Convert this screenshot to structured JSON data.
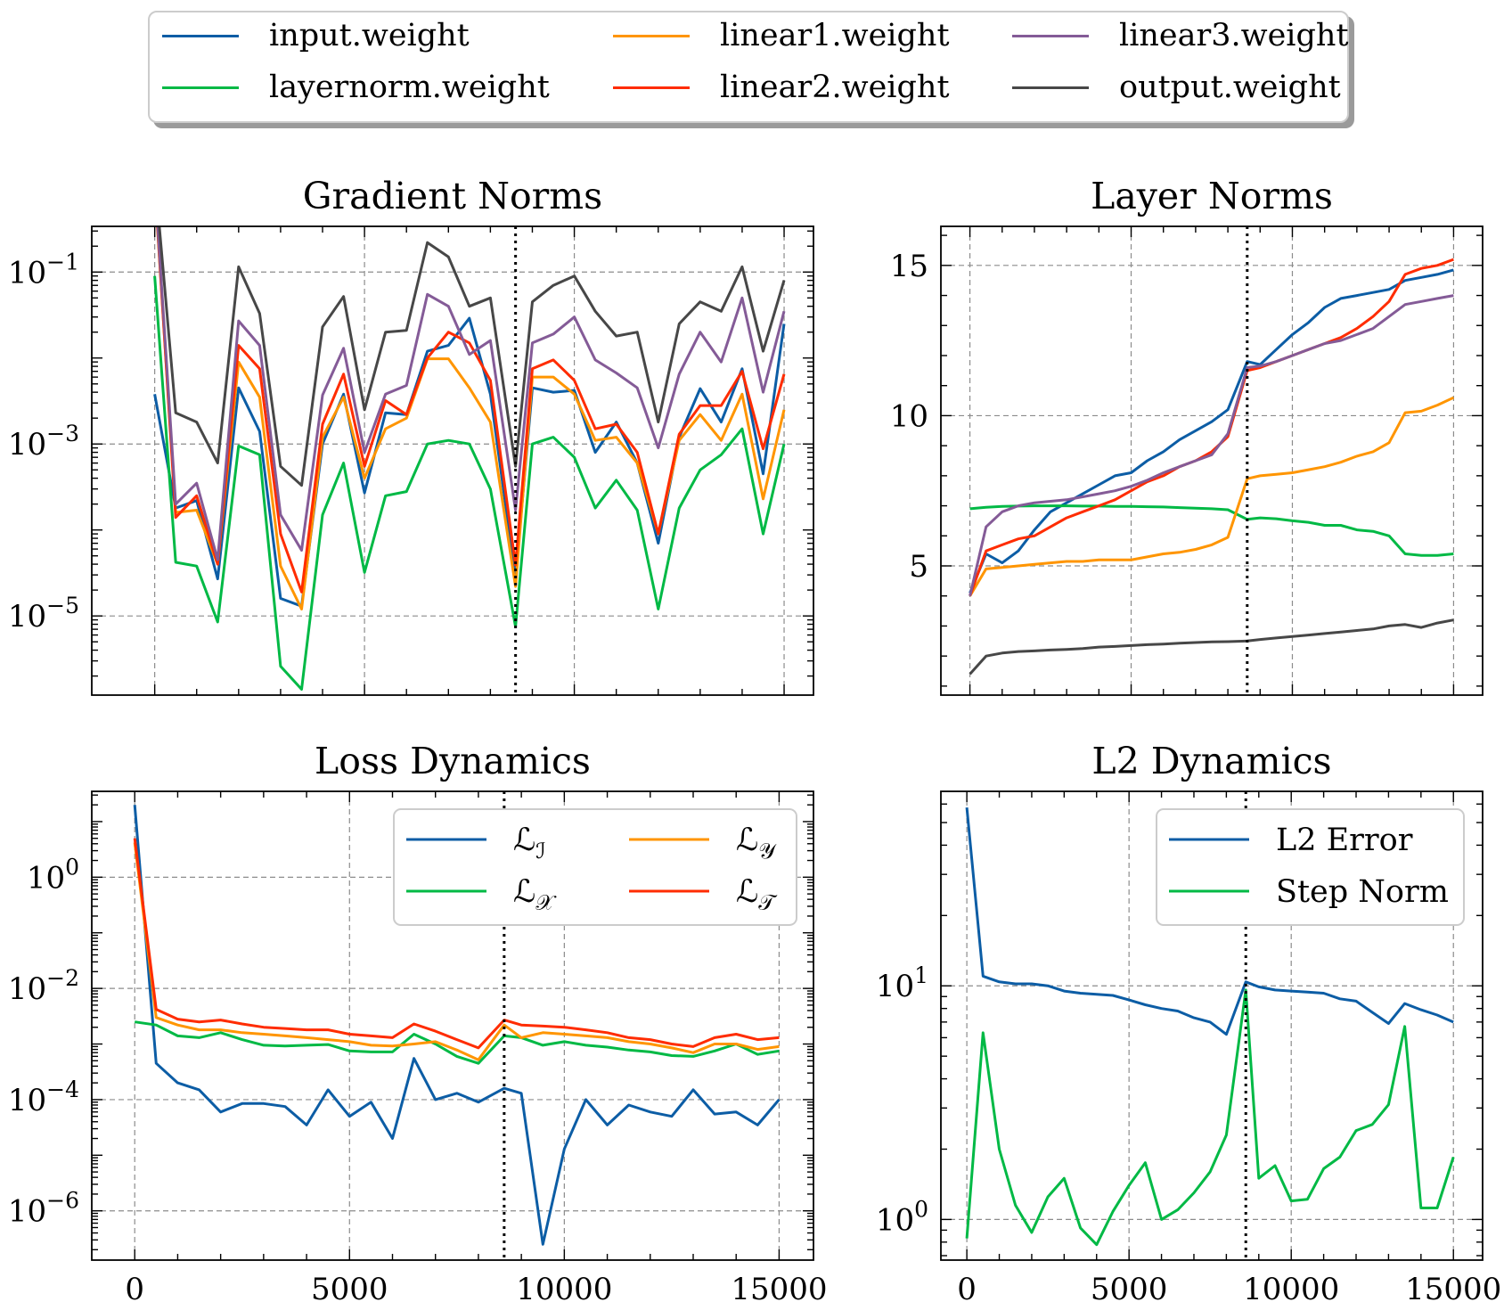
{
  "x_ticks": [
    0,
    5000,
    10000,
    15000
  ],
  "phase_change_step": 8600,
  "colors": {
    "input.weight": "#0C5DA5",
    "layernorm.weight": "#00B945",
    "linear1.weight": "#FF9500",
    "linear2.weight": "#FF2C00",
    "linear3.weight": "#845B97",
    "output.weight": "#474747",
    "grid": "#8c8c8c"
  },
  "legend": [
    {
      "label": "input.weight",
      "color": "#0C5DA5"
    },
    {
      "label": "layernorm.weight",
      "color": "#00B945"
    },
    {
      "label": "linear1.weight",
      "color": "#FF9500"
    },
    {
      "label": "linear2.weight",
      "color": "#FF2C00"
    },
    {
      "label": "linear3.weight",
      "color": "#845B97"
    },
    {
      "label": "output.weight",
      "color": "#474747"
    }
  ],
  "chart_data": [
    {
      "id": "grad",
      "type": "line",
      "title": "Gradient Norms",
      "xlabel": "",
      "ylabel": "",
      "yscale": "log",
      "xlim": [
        -1500,
        15700
      ],
      "ylim": [
        1.2e-06,
        0.34
      ],
      "yticks": [
        {
          "v": 0.1,
          "base": "10",
          "exp": "−1"
        },
        {
          "v": 0.001,
          "base": "10",
          "exp": "−3"
        },
        {
          "v": 1e-05,
          "base": "10",
          "exp": "−5"
        }
      ],
      "show_xticklabels": false,
      "grid": true,
      "x": [
        0,
        500,
        1000,
        1500,
        2000,
        2500,
        3000,
        3500,
        4000,
        4500,
        5000,
        5500,
        6000,
        6500,
        7000,
        7500,
        8000,
        8600,
        9000,
        9500,
        10000,
        10500,
        11000,
        11500,
        12000,
        12500,
        13000,
        13500,
        14000,
        14500,
        15000
      ],
      "series": [
        {
          "name": "input.weight",
          "values": [
            0.0038,
            0.00018,
            0.00022,
            2.7e-05,
            0.0045,
            0.0014,
            1.6e-05,
            1.3e-05,
            0.001,
            0.0038,
            0.00027,
            0.0023,
            0.0022,
            0.012,
            0.014,
            0.029,
            0.0038,
            2.8e-05,
            0.0045,
            0.004,
            0.0042,
            0.0008,
            0.0018,
            0.0006,
            7e-05,
            0.0012,
            0.0044,
            0.0018,
            0.0075,
            0.00045,
            0.025
          ]
        },
        {
          "name": "layernorm.weight",
          "values": [
            0.09,
            4.2e-05,
            3.8e-05,
            8.5e-06,
            0.00095,
            0.00075,
            2.6e-06,
            1.4e-06,
            0.00015,
            0.0006,
            3.2e-05,
            0.00025,
            0.00028,
            0.001,
            0.0011,
            0.001,
            0.0003,
            7.5e-06,
            0.001,
            0.0012,
            0.0007,
            0.00018,
            0.00038,
            0.00017,
            1.2e-05,
            0.00018,
            0.0005,
            0.00075,
            0.0015,
            9e-05,
            0.001
          ]
        },
        {
          "name": "linear1.weight",
          "values": [
            1.05,
            0.00016,
            0.00017,
            4e-05,
            0.009,
            0.0035,
            3.8e-05,
            1.2e-05,
            0.0012,
            0.0035,
            0.0004,
            0.0015,
            0.002,
            0.0098,
            0.0098,
            0.0045,
            0.0018,
            2.2e-05,
            0.006,
            0.006,
            0.0038,
            0.0011,
            0.0012,
            0.0006,
            9e-05,
            0.0011,
            0.0022,
            0.0011,
            0.0038,
            0.00023,
            0.0025
          ]
        },
        {
          "name": "linear2.weight",
          "values": [
            1.15,
            0.00014,
            0.00025,
            4e-05,
            0.014,
            0.0075,
            9e-05,
            1.9e-05,
            0.0017,
            0.0065,
            0.00055,
            0.0032,
            0.0022,
            0.01,
            0.02,
            0.015,
            0.0055,
            3.9e-05,
            0.0075,
            0.0095,
            0.0055,
            0.0015,
            0.0017,
            0.0008,
            9e-05,
            0.0013,
            0.0028,
            0.0028,
            0.007,
            0.00088,
            0.0065
          ]
        },
        {
          "name": "linear3.weight",
          "values": [
            1.2,
            0.0002,
            0.00035,
            4.5e-05,
            0.027,
            0.014,
            0.00015,
            5.8e-05,
            0.0037,
            0.013,
            0.0008,
            0.0038,
            0.0048,
            0.055,
            0.04,
            0.011,
            0.016,
            0.00017,
            0.015,
            0.019,
            0.03,
            0.0095,
            0.0067,
            0.0045,
            0.0009,
            0.0065,
            0.02,
            0.009,
            0.05,
            0.004,
            0.035
          ]
        },
        {
          "name": "output.weight",
          "values": [
            1.4,
            0.0023,
            0.0018,
            0.0006,
            0.115,
            0.033,
            0.00055,
            0.00033,
            0.023,
            0.052,
            0.0025,
            0.02,
            0.021,
            0.22,
            0.15,
            0.04,
            0.05,
            0.00055,
            0.045,
            0.07,
            0.09,
            0.035,
            0.018,
            0.02,
            0.0018,
            0.025,
            0.045,
            0.035,
            0.115,
            0.012,
            0.08
          ]
        }
      ]
    },
    {
      "id": "layer",
      "type": "line",
      "title": "Layer Norms",
      "xlabel": "",
      "ylabel": "",
      "yscale": "linear",
      "xlim": [
        -900,
        15900
      ],
      "ylim": [
        0.7,
        16.3
      ],
      "yticks": [
        {
          "v": 5,
          "label": "5"
        },
        {
          "v": 10,
          "label": "10"
        },
        {
          "v": 15,
          "label": "15"
        }
      ],
      "show_xticklabels": false,
      "grid": true,
      "x": [
        0,
        500,
        1000,
        1500,
        2000,
        2500,
        3000,
        3500,
        4000,
        4500,
        5000,
        5500,
        6000,
        6500,
        7000,
        7500,
        8000,
        8600,
        9000,
        9500,
        10000,
        10500,
        11000,
        11500,
        12000,
        12500,
        13000,
        13500,
        14000,
        14500,
        15000
      ],
      "series": [
        {
          "name": "input.weight",
          "values": [
            4.1,
            5.4,
            5.1,
            5.5,
            6.2,
            6.8,
            7.1,
            7.4,
            7.7,
            8.0,
            8.1,
            8.5,
            8.8,
            9.2,
            9.5,
            9.8,
            10.2,
            11.8,
            11.7,
            12.2,
            12.7,
            13.1,
            13.6,
            13.9,
            14.0,
            14.1,
            14.2,
            14.5,
            14.6,
            14.7,
            14.85
          ]
        },
        {
          "name": "layernorm.weight",
          "values": [
            6.9,
            6.95,
            6.98,
            6.99,
            7.0,
            7.0,
            7.0,
            6.99,
            6.99,
            6.98,
            6.98,
            6.97,
            6.96,
            6.94,
            6.92,
            6.9,
            6.87,
            6.55,
            6.6,
            6.57,
            6.5,
            6.45,
            6.35,
            6.35,
            6.2,
            6.15,
            6.0,
            5.4,
            5.35,
            5.35,
            5.4
          ]
        },
        {
          "name": "linear1.weight",
          "values": [
            4.0,
            4.9,
            4.95,
            5.0,
            5.05,
            5.1,
            5.15,
            5.15,
            5.2,
            5.2,
            5.2,
            5.3,
            5.4,
            5.45,
            5.55,
            5.7,
            5.95,
            7.9,
            8.0,
            8.05,
            8.1,
            8.2,
            8.3,
            8.45,
            8.65,
            8.8,
            9.1,
            10.1,
            10.15,
            10.35,
            10.6
          ]
        },
        {
          "name": "linear2.weight",
          "values": [
            4.0,
            5.5,
            5.7,
            5.9,
            6.0,
            6.3,
            6.6,
            6.8,
            7.0,
            7.2,
            7.5,
            7.8,
            8.0,
            8.3,
            8.5,
            8.8,
            9.3,
            11.5,
            11.6,
            11.8,
            12.0,
            12.2,
            12.4,
            12.6,
            12.9,
            13.3,
            13.8,
            14.7,
            14.9,
            15.0,
            15.2
          ]
        },
        {
          "name": "linear3.weight",
          "values": [
            4.0,
            6.3,
            6.8,
            7.0,
            7.1,
            7.15,
            7.2,
            7.3,
            7.4,
            7.5,
            7.65,
            7.85,
            8.1,
            8.3,
            8.5,
            8.7,
            9.4,
            11.6,
            11.65,
            11.8,
            12.0,
            12.2,
            12.4,
            12.5,
            12.7,
            12.9,
            13.3,
            13.7,
            13.8,
            13.9,
            14.0
          ]
        },
        {
          "name": "output.weight",
          "values": [
            1.4,
            2.0,
            2.1,
            2.15,
            2.17,
            2.2,
            2.22,
            2.25,
            2.3,
            2.32,
            2.35,
            2.38,
            2.4,
            2.43,
            2.45,
            2.47,
            2.48,
            2.5,
            2.55,
            2.6,
            2.65,
            2.7,
            2.75,
            2.8,
            2.85,
            2.9,
            3.0,
            3.05,
            2.95,
            3.1,
            3.2
          ]
        }
      ]
    },
    {
      "id": "loss",
      "type": "line",
      "title": "Loss Dynamics",
      "xlabel": "",
      "ylabel": "",
      "yscale": "log",
      "xlim": [
        -1000,
        15800
      ],
      "ylim": [
        1.3e-07,
        35
      ],
      "yticks": [
        {
          "v": 1,
          "base": "10",
          "exp": "0"
        },
        {
          "v": 0.01,
          "base": "10",
          "exp": "−2"
        },
        {
          "v": 0.0001,
          "base": "10",
          "exp": "−4"
        },
        {
          "v": 1e-06,
          "base": "10",
          "exp": "−6"
        }
      ],
      "show_xticklabels": true,
      "grid": true,
      "legend": [
        {
          "series": "L_I",
          "label": "ℒ",
          "sub": "ℐ",
          "color": "#0C5DA5"
        },
        {
          "series": "L_Y",
          "label": "ℒ",
          "sub": "𝒴",
          "color": "#FF9500"
        },
        {
          "series": "L_X",
          "label": "ℒ",
          "sub": "𝒳",
          "color": "#00B945"
        },
        {
          "series": "L_T",
          "label": "ℒ",
          "sub": "𝒯",
          "color": "#FF2C00"
        }
      ],
      "x": [
        0,
        500,
        1000,
        1500,
        2000,
        2500,
        3000,
        3500,
        4000,
        4500,
        5000,
        5500,
        6000,
        6500,
        7000,
        7500,
        8000,
        8600,
        9000,
        9500,
        10000,
        10500,
        11000,
        11500,
        12000,
        12500,
        13000,
        13500,
        14000,
        14500,
        15000
      ],
      "series": [
        {
          "name": "L_I",
          "values": [
            20,
            0.00045,
            0.0002,
            0.00015,
            6e-05,
            8.5e-05,
            8.5e-05,
            7.5e-05,
            3.5e-05,
            0.00015,
            5e-05,
            9e-05,
            2e-05,
            0.00055,
            0.0001,
            0.00013,
            9e-05,
            0.00016,
            0.00013,
            2.5e-07,
            1.3e-05,
            0.0001,
            3.5e-05,
            8e-05,
            6e-05,
            5e-05,
            0.00015,
            5.5e-05,
            6e-05,
            3.5e-05,
            0.0001
          ]
        },
        {
          "name": "L_X",
          "values": [
            0.0025,
            0.0022,
            0.0014,
            0.0013,
            0.0016,
            0.0012,
            0.00095,
            0.00092,
            0.00095,
            0.00098,
            0.00075,
            0.00072,
            0.00072,
            0.0015,
            0.001,
            0.0006,
            0.00045,
            0.0014,
            0.0013,
            0.00095,
            0.0011,
            0.00095,
            0.00088,
            0.00078,
            0.00072,
            0.00062,
            0.0006,
            0.00075,
            0.001,
            0.00065,
            0.00075
          ]
        },
        {
          "name": "L_Y",
          "values": [
            4.2,
            0.003,
            0.0022,
            0.0018,
            0.0018,
            0.0016,
            0.0015,
            0.0014,
            0.0013,
            0.0012,
            0.0011,
            0.00095,
            0.00092,
            0.001,
            0.0011,
            0.00078,
            0.00052,
            0.0022,
            0.0013,
            0.0016,
            0.0015,
            0.0014,
            0.0013,
            0.0011,
            0.001,
            0.00085,
            0.0007,
            0.001,
            0.001,
            0.0008,
            0.0009
          ]
        },
        {
          "name": "L_T",
          "values": [
            5.0,
            0.0042,
            0.0028,
            0.0025,
            0.0027,
            0.0023,
            0.002,
            0.0019,
            0.0018,
            0.0018,
            0.0015,
            0.0014,
            0.0013,
            0.0023,
            0.0017,
            0.0012,
            0.00085,
            0.0027,
            0.0022,
            0.0021,
            0.002,
            0.0018,
            0.0016,
            0.0013,
            0.0012,
            0.001,
            0.0009,
            0.0013,
            0.0015,
            0.0012,
            0.0013
          ]
        }
      ]
    },
    {
      "id": "l2",
      "type": "line",
      "title": "L2 Dynamics",
      "xlabel": "",
      "ylabel": "",
      "yscale": "log",
      "xlim": [
        -800,
        15900
      ],
      "ylim": [
        0.67,
        68
      ],
      "yticks": [
        {
          "v": 10,
          "base": "10",
          "exp": "1"
        },
        {
          "v": 1,
          "base": "10",
          "exp": "0"
        }
      ],
      "show_xticklabels": true,
      "grid": true,
      "legend": [
        {
          "series": "L2 Error",
          "label": "L2 Error",
          "color": "#0C5DA5"
        },
        {
          "series": "Step Norm",
          "label": "Step Norm",
          "color": "#00B945"
        }
      ],
      "x": [
        0,
        500,
        1000,
        1500,
        2000,
        2500,
        3000,
        3500,
        4000,
        4500,
        5000,
        5500,
        6000,
        6500,
        7000,
        7500,
        8000,
        8600,
        9000,
        9500,
        10000,
        10500,
        11000,
        11500,
        12000,
        12500,
        13000,
        13500,
        14000,
        14500,
        15000
      ],
      "series": [
        {
          "name": "L2 Error",
          "values": [
            58,
            11.0,
            10.4,
            10.2,
            10.2,
            10.0,
            9.5,
            9.3,
            9.2,
            9.1,
            8.7,
            8.3,
            8.0,
            7.8,
            7.3,
            7.0,
            6.2,
            10.4,
            9.9,
            9.6,
            9.5,
            9.4,
            9.3,
            8.8,
            8.6,
            7.7,
            6.9,
            8.4,
            7.9,
            7.5,
            7.0
          ]
        },
        {
          "name": "Step Norm",
          "values": [
            0.83,
            6.3,
            2.0,
            1.15,
            0.88,
            1.25,
            1.5,
            0.92,
            0.78,
            1.08,
            1.4,
            1.75,
            1.0,
            1.1,
            1.3,
            1.6,
            2.3,
            9.6,
            1.5,
            1.7,
            1.2,
            1.22,
            1.65,
            1.85,
            2.4,
            2.55,
            3.1,
            6.7,
            1.12,
            1.12,
            1.85
          ]
        }
      ]
    }
  ]
}
